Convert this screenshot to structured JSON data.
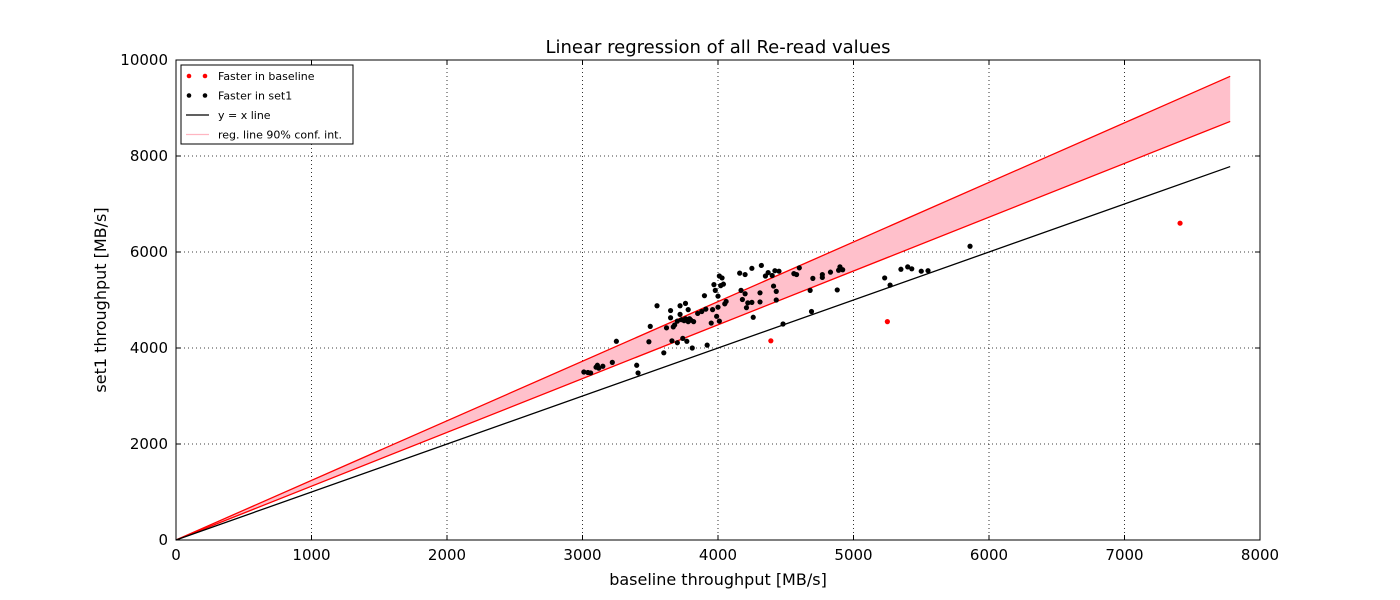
{
  "chart_data": {
    "type": "scatter",
    "title": "Linear regression of all Re-read values",
    "xlabel": "baseline throughput [MB/s]",
    "ylabel": "set1 throughput [MB/s]",
    "xlim": [
      0,
      8000
    ],
    "ylim": [
      0,
      10000
    ],
    "xticks": [
      0,
      1000,
      2000,
      3000,
      4000,
      5000,
      6000,
      7000,
      8000
    ],
    "yticks": [
      0,
      2000,
      4000,
      6000,
      8000,
      10000
    ],
    "grid": true,
    "legend_position": "top-left",
    "colors": {
      "baseline": "#ff0000",
      "set1": "#000000",
      "yx": "#000000",
      "band_fill": "#ffc0cb",
      "band_edge": "#ff0000"
    },
    "legend": [
      {
        "label": "Faster in baseline",
        "kind": "point",
        "color": "#ff0000"
      },
      {
        "label": "Faster in set1",
        "kind": "point",
        "color": "#000000"
      },
      {
        "label": "y = x line",
        "kind": "line",
        "color": "#000000"
      },
      {
        "label": "reg. line 90% conf. int.",
        "kind": "line",
        "color": "#ffb6c1"
      }
    ],
    "yx_line": {
      "x": [
        0,
        7780
      ],
      "y": [
        0,
        7780
      ]
    },
    "conf_band": {
      "x": [
        0,
        7780
      ],
      "lower": [
        0,
        8720
      ],
      "upper": [
        0,
        9660
      ]
    },
    "series": [
      {
        "name": "Faster in baseline",
        "color": "#ff0000",
        "points": [
          [
            4390,
            4150
          ],
          [
            5250,
            4550
          ],
          [
            7410,
            6600
          ]
        ]
      },
      {
        "name": "Faster in set1",
        "color": "#000000",
        "points": [
          [
            3010,
            3500
          ],
          [
            3040,
            3490
          ],
          [
            3060,
            3480
          ],
          [
            3100,
            3600
          ],
          [
            3110,
            3640
          ],
          [
            3120,
            3580
          ],
          [
            3150,
            3620
          ],
          [
            3220,
            3700
          ],
          [
            3250,
            4140
          ],
          [
            3400,
            3640
          ],
          [
            3410,
            3480
          ],
          [
            3490,
            4130
          ],
          [
            3500,
            4450
          ],
          [
            3550,
            4880
          ],
          [
            3600,
            3900
          ],
          [
            3620,
            4420
          ],
          [
            3650,
            4780
          ],
          [
            3650,
            4630
          ],
          [
            3660,
            4150
          ],
          [
            3670,
            4440
          ],
          [
            3680,
            4480
          ],
          [
            3700,
            4560
          ],
          [
            3700,
            4110
          ],
          [
            3720,
            4700
          ],
          [
            3720,
            4880
          ],
          [
            3730,
            4590
          ],
          [
            3740,
            4200
          ],
          [
            3750,
            4570
          ],
          [
            3760,
            4930
          ],
          [
            3760,
            4610
          ],
          [
            3770,
            4140
          ],
          [
            3780,
            4800
          ],
          [
            3780,
            4550
          ],
          [
            3790,
            4610
          ],
          [
            3800,
            4580
          ],
          [
            3810,
            4000
          ],
          [
            3820,
            4550
          ],
          [
            3850,
            4720
          ],
          [
            3880,
            4760
          ],
          [
            3900,
            5090
          ],
          [
            3910,
            4810
          ],
          [
            3920,
            4060
          ],
          [
            3950,
            4520
          ],
          [
            3960,
            4800
          ],
          [
            3970,
            5320
          ],
          [
            3980,
            5200
          ],
          [
            3990,
            4660
          ],
          [
            4000,
            4850
          ],
          [
            4000,
            5080
          ],
          [
            4010,
            4560
          ],
          [
            4010,
            5500
          ],
          [
            4020,
            5300
          ],
          [
            4030,
            5460
          ],
          [
            4040,
            5330
          ],
          [
            4050,
            4920
          ],
          [
            4060,
            4970
          ],
          [
            4160,
            5560
          ],
          [
            4170,
            5200
          ],
          [
            4180,
            5010
          ],
          [
            4200,
            5130
          ],
          [
            4200,
            5530
          ],
          [
            4210,
            4840
          ],
          [
            4220,
            4940
          ],
          [
            4250,
            4950
          ],
          [
            4250,
            5660
          ],
          [
            4260,
            4640
          ],
          [
            4310,
            5150
          ],
          [
            4310,
            4960
          ],
          [
            4320,
            5720
          ],
          [
            4350,
            5500
          ],
          [
            4370,
            5570
          ],
          [
            4400,
            5510
          ],
          [
            4410,
            5290
          ],
          [
            4420,
            5610
          ],
          [
            4430,
            5180
          ],
          [
            4430,
            5000
          ],
          [
            4450,
            5600
          ],
          [
            4480,
            4500
          ],
          [
            4560,
            5550
          ],
          [
            4580,
            5530
          ],
          [
            4600,
            5670
          ],
          [
            4680,
            5200
          ],
          [
            4690,
            4760
          ],
          [
            4700,
            5450
          ],
          [
            4770,
            5470
          ],
          [
            4770,
            5530
          ],
          [
            4830,
            5580
          ],
          [
            4880,
            5210
          ],
          [
            4890,
            5620
          ],
          [
            4900,
            5690
          ],
          [
            4920,
            5630
          ],
          [
            5230,
            5460
          ],
          [
            5270,
            5310
          ],
          [
            5350,
            5640
          ],
          [
            5400,
            5690
          ],
          [
            5430,
            5650
          ],
          [
            5500,
            5600
          ],
          [
            5550,
            5610
          ],
          [
            5860,
            6120
          ]
        ]
      }
    ]
  }
}
